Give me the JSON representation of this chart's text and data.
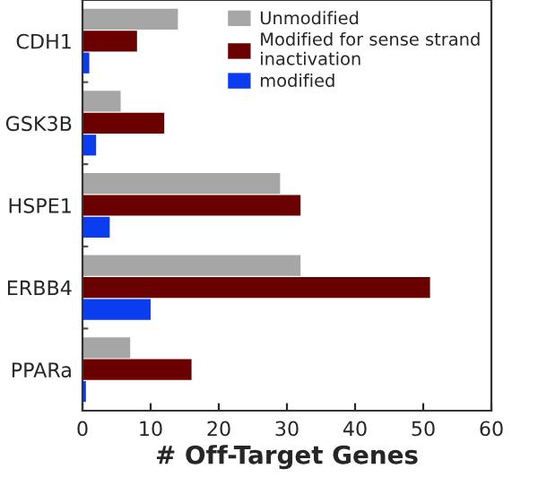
{
  "chart_data": {
    "type": "bar",
    "orientation": "horizontal",
    "xlabel": "# Off-Target Genes",
    "categories": [
      "CDH1",
      "GSK3B",
      "HSPE1",
      "ERBB4",
      "PPARa"
    ],
    "series": [
      {
        "name": "Unmodified",
        "color": "#a6a6a6",
        "values": [
          14,
          5.6,
          29,
          32,
          7
        ]
      },
      {
        "name": "Modified for sense strand\ninactivation",
        "color": "#6b0000",
        "values": [
          8,
          12,
          32,
          51,
          16
        ]
      },
      {
        "name": "modified",
        "color": "#0a3cf0",
        "values": [
          1,
          2,
          4,
          10,
          0.5
        ]
      }
    ],
    "xlim": [
      0,
      60
    ],
    "xticks": [
      0,
      10,
      20,
      30,
      40,
      50,
      60
    ],
    "grid": false,
    "legend": "top right"
  }
}
